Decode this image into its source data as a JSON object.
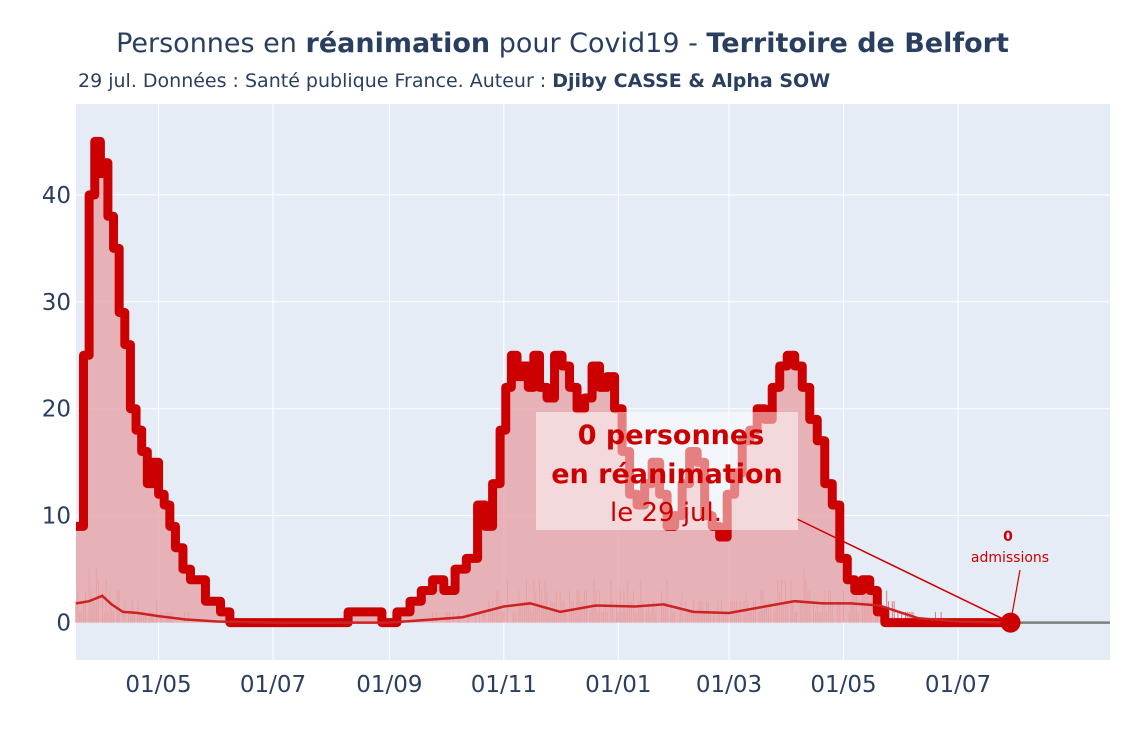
{
  "title": {
    "prefix": "Personnes en ",
    "bold": "réanimation",
    "middle": " pour Covid19 - ",
    "territory": "Territoire de Belfort"
  },
  "subtitle": {
    "text": "29 jul. Données : Santé publique France. Auteur : ",
    "authors": "Djiby CASSE & Alpha SOW"
  },
  "colors": {
    "line": "#cc0000",
    "fill": "#e8a8ab",
    "plot_bg": "#e5ecf6",
    "grid": "#ffffff",
    "zeroline": "#7f7f7f",
    "text": "#2a3f5f"
  },
  "annotation": {
    "line1": "0 personnes",
    "line2": "en réanimation",
    "line3": "le 29 jul."
  },
  "admissions_label": {
    "value": "0",
    "text": "admissions"
  },
  "chart_data": {
    "type": "area",
    "x_type": "date",
    "ylim": [
      -3.5,
      48.5
    ],
    "y_ticks": [
      0,
      10,
      20,
      30,
      40
    ],
    "x_tick_labels": [
      "01/05",
      "01/07",
      "01/09",
      "01/11",
      "01/01",
      "01/03",
      "01/05",
      "01/07"
    ],
    "x_tick_dates": [
      "2020-05-01",
      "2020-07-01",
      "2020-09-01",
      "2020-11-01",
      "2021-01-01",
      "2021-03-01",
      "2021-05-01",
      "2021-07-01"
    ],
    "xlim": [
      "2020-03-18",
      "2021-09-20"
    ],
    "grid": true,
    "series": [
      {
        "kind": "réanimation",
        "dates": [
          "2020-03-18",
          "2020-03-22",
          "2020-03-25",
          "2020-03-28",
          "2020-03-31",
          "2020-04-02",
          "2020-04-04",
          "2020-04-07",
          "2020-04-10",
          "2020-04-13",
          "2020-04-16",
          "2020-04-19",
          "2020-04-22",
          "2020-04-25",
          "2020-04-28",
          "2020-05-01",
          "2020-05-04",
          "2020-05-07",
          "2020-05-10",
          "2020-05-14",
          "2020-05-18",
          "2020-05-22",
          "2020-05-26",
          "2020-05-30",
          "2020-06-03",
          "2020-06-08",
          "2020-06-13",
          "2020-06-18",
          "2020-06-23",
          "2020-06-28",
          "2020-07-01",
          "2020-07-10",
          "2020-07-25",
          "2020-08-10",
          "2020-08-20",
          "2020-08-28",
          "2020-09-05",
          "2020-09-12",
          "2020-09-18",
          "2020-09-24",
          "2020-09-30",
          "2020-10-06",
          "2020-10-12",
          "2020-10-18",
          "2020-10-22",
          "2020-10-26",
          "2020-10-30",
          "2020-11-02",
          "2020-11-05",
          "2020-11-08",
          "2020-11-11",
          "2020-11-14",
          "2020-11-17",
          "2020-11-20",
          "2020-11-24",
          "2020-11-28",
          "2020-12-02",
          "2020-12-06",
          "2020-12-10",
          "2020-12-14",
          "2020-12-18",
          "2020-12-22",
          "2020-12-26",
          "2020-12-30",
          "2021-01-03",
          "2021-01-07",
          "2021-01-11",
          "2021-01-15",
          "2021-01-19",
          "2021-01-23",
          "2021-01-27",
          "2021-01-31",
          "2021-02-04",
          "2021-02-08",
          "2021-02-12",
          "2021-02-16",
          "2021-02-20",
          "2021-02-24",
          "2021-02-28",
          "2021-03-04",
          "2021-03-08",
          "2021-03-12",
          "2021-03-16",
          "2021-03-20",
          "2021-03-24",
          "2021-03-28",
          "2021-04-01",
          "2021-04-05",
          "2021-04-09",
          "2021-04-13",
          "2021-04-17",
          "2021-04-21",
          "2021-04-25",
          "2021-04-29",
          "2021-05-03",
          "2021-05-07",
          "2021-05-11",
          "2021-05-15",
          "2021-05-19",
          "2021-05-23",
          "2021-05-27",
          "2021-05-31",
          "2021-06-04",
          "2021-06-08",
          "2021-06-12",
          "2021-06-16",
          "2021-06-20",
          "2021-06-24",
          "2021-06-28",
          "2021-07-02",
          "2021-07-06",
          "2021-07-12",
          "2021-07-29"
        ],
        "values": [
          9,
          25,
          40,
          45,
          42,
          43,
          38,
          35,
          29,
          26,
          20,
          18,
          16,
          13,
          15,
          12,
          11,
          9,
          7,
          5,
          4,
          4,
          2,
          2,
          1,
          0,
          0,
          0,
          0,
          0,
          0,
          0,
          0,
          1,
          1,
          0,
          1,
          2,
          3,
          4,
          3,
          5,
          6,
          11,
          9,
          13,
          18,
          22,
          25,
          23,
          24,
          22,
          25,
          22,
          21,
          25,
          24,
          22,
          20,
          21,
          24,
          22,
          23,
          20,
          16,
          12,
          11,
          13,
          15,
          12,
          9,
          10,
          13,
          16,
          15,
          10,
          9,
          8,
          12,
          14,
          17,
          18,
          20,
          19,
          22,
          24,
          25,
          24,
          22,
          19,
          17,
          13,
          11,
          6,
          4,
          3,
          4,
          3,
          1,
          0,
          0,
          0,
          0,
          0,
          0,
          0,
          0,
          0,
          0,
          0,
          0,
          0,
          0
        ]
      },
      {
        "kind": "admissions (moyenne)",
        "dates": [
          "2020-03-18",
          "2020-03-25",
          "2020-04-01",
          "2020-04-06",
          "2020-04-12",
          "2020-04-20",
          "2020-05-01",
          "2020-05-15",
          "2020-06-01",
          "2020-07-01",
          "2020-09-01",
          "2020-10-10",
          "2020-11-01",
          "2020-11-15",
          "2020-12-01",
          "2020-12-20",
          "2021-01-10",
          "2021-01-25",
          "2021-02-10",
          "2021-03-01",
          "2021-03-20",
          "2021-04-05",
          "2021-04-20",
          "2021-05-05",
          "2021-05-20",
          "2021-06-10",
          "2021-07-01",
          "2021-07-29"
        ],
        "values": [
          1.8,
          2.0,
          2.5,
          1.7,
          1.0,
          0.9,
          0.6,
          0.3,
          0.1,
          0.0,
          0.0,
          0.5,
          1.5,
          1.8,
          1.0,
          1.6,
          1.5,
          1.7,
          1.0,
          0.9,
          1.5,
          2.0,
          1.8,
          1.8,
          1.6,
          0.4,
          0.1,
          0.0
        ]
      }
    ],
    "last_point": {
      "date": "2021-07-29",
      "value": 0
    }
  }
}
